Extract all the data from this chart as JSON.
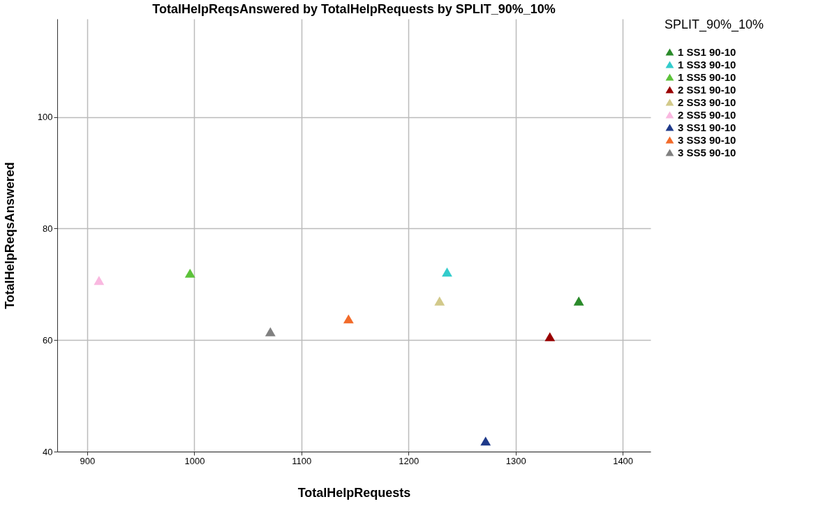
{
  "chart_data": {
    "type": "scatter",
    "title": "TotalHelpReqsAnswered by TotalHelpRequests by SPLIT_90%_10%",
    "xlabel": "TotalHelpRequests",
    "ylabel": "TotalHelpReqsAnswered",
    "legend_title": "SPLIT_90%_10%",
    "xlim": [
      872,
      1426
    ],
    "xticks": [
      900,
      1000,
      1100,
      1200,
      1300,
      1400
    ],
    "ylim": [
      40,
      117.6
    ],
    "yticks": [
      40,
      60,
      80,
      100
    ],
    "grid": true,
    "legend": "right",
    "marker": "triangle",
    "series": [
      {
        "name": "1 SS1 90-10",
        "color": "#2a8a2a",
        "x": [
          1359
        ],
        "values": [
          67.0
        ]
      },
      {
        "name": "1 SS3 90-10",
        "color": "#33cccc",
        "x": [
          1236
        ],
        "values": [
          72.2
        ]
      },
      {
        "name": "1 SS5 90-10",
        "color": "#5cc23a",
        "x": [
          996
        ],
        "values": [
          72.0
        ]
      },
      {
        "name": "2 SS1 90-10",
        "color": "#990000",
        "x": [
          1332
        ],
        "values": [
          60.6
        ]
      },
      {
        "name": "2 SS3 90-10",
        "color": "#d2c98a",
        "x": [
          1229
        ],
        "values": [
          67.0
        ]
      },
      {
        "name": "2 SS5 90-10",
        "color": "#f9b8e0",
        "x": [
          911
        ],
        "values": [
          70.7
        ]
      },
      {
        "name": "3 SS1 90-10",
        "color": "#1f3a8a",
        "x": [
          1272
        ],
        "values": [
          41.9
        ]
      },
      {
        "name": "3 SS3 90-10",
        "color": "#f26b2a",
        "x": [
          1144
        ],
        "values": [
          63.8
        ]
      },
      {
        "name": "3 SS5 90-10",
        "color": "#808080",
        "x": [
          1071
        ],
        "values": [
          61.5
        ]
      }
    ]
  }
}
